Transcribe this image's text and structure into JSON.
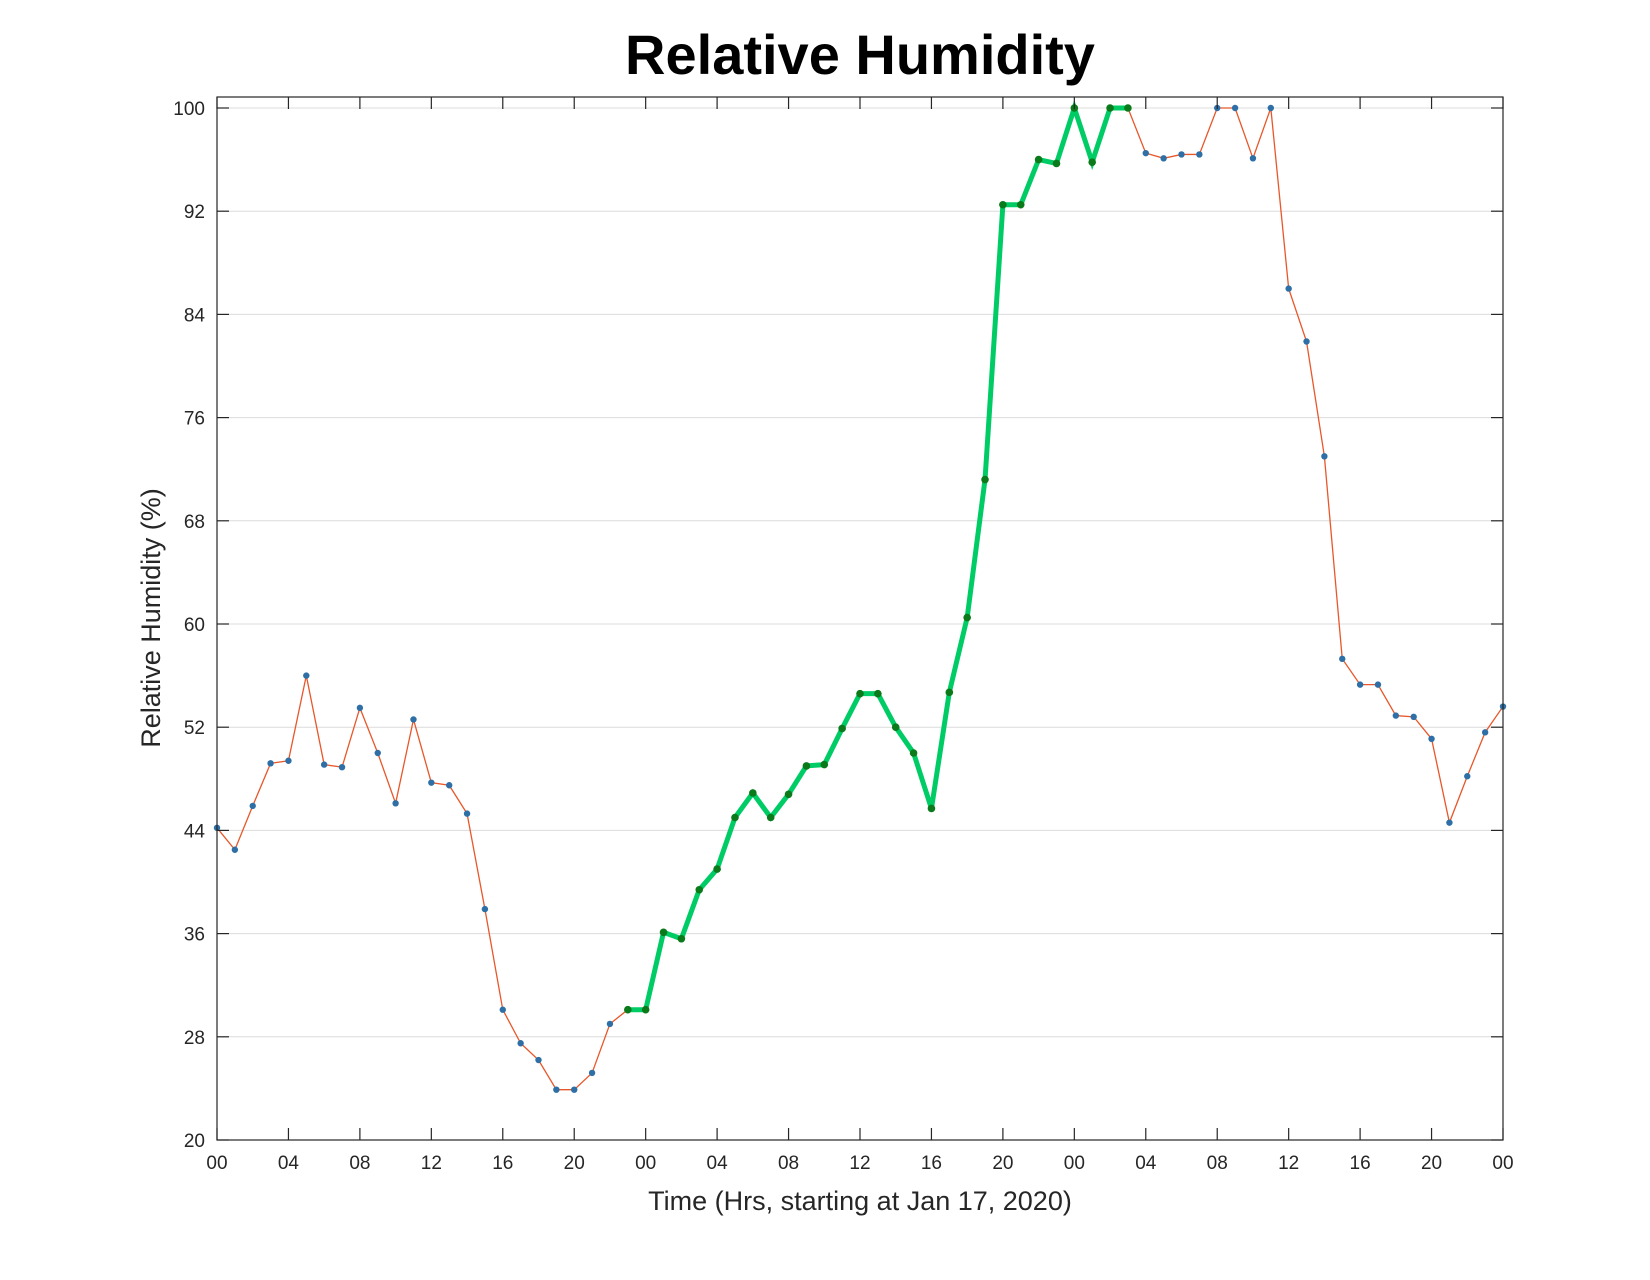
{
  "chart_data": {
    "type": "line",
    "title": "Relative Humidity",
    "xlabel": "Time (Hrs, starting at Jan 17, 2020)",
    "ylabel": "Relative Humidity (%)",
    "xlim": [
      0,
      72
    ],
    "ylim": [
      20,
      100
    ],
    "x_tick_values": [
      0,
      4,
      8,
      12,
      16,
      20,
      24,
      28,
      32,
      36,
      40,
      44,
      48,
      52,
      56,
      60,
      64,
      68,
      72
    ],
    "x_tick_labels": [
      "00",
      "04",
      "08",
      "12",
      "16",
      "20",
      "00",
      "04",
      "08",
      "12",
      "16",
      "20",
      "00",
      "04",
      "08",
      "12",
      "16",
      "20",
      "00"
    ],
    "y_ticks": [
      20,
      28,
      36,
      44,
      52,
      60,
      68,
      76,
      84,
      92,
      100
    ],
    "grid": "horizontal",
    "series": [
      {
        "color": "#e8572a",
        "marker_color": "#2e6fa6",
        "x": [
          0,
          1,
          2,
          3,
          4,
          5,
          6,
          7,
          8,
          9,
          10,
          11,
          12,
          13,
          14,
          15,
          16,
          17,
          18,
          19,
          20,
          21,
          22,
          23,
          24,
          25,
          26,
          27,
          28,
          29,
          30,
          31,
          32,
          33,
          34,
          35,
          36,
          37,
          38,
          39,
          40,
          41,
          42,
          43,
          44,
          45,
          46,
          47,
          48,
          49,
          50,
          51,
          52,
          53,
          54,
          55,
          56,
          57,
          58,
          59,
          60,
          61,
          62,
          63,
          64,
          65,
          66,
          67,
          68,
          69,
          70,
          71,
          72
        ],
        "y": [
          44.2,
          42.5,
          45.9,
          49.2,
          49.4,
          56.0,
          49.1,
          48.9,
          53.5,
          50.0,
          46.1,
          52.6,
          47.7,
          47.5,
          45.3,
          37.9,
          30.1,
          27.5,
          26.2,
          23.9,
          23.9,
          25.2,
          29.0,
          30.1,
          30.1,
          36.1,
          35.6,
          39.4,
          41.0,
          45.0,
          46.9,
          45.0,
          46.8,
          49.0,
          49.1,
          51.9,
          54.6,
          54.6,
          52.0,
          50.0,
          45.7,
          54.7,
          60.5,
          71.2,
          92.5,
          92.5,
          96.0,
          95.7,
          100,
          95.8,
          100,
          100,
          96.5,
          96.1,
          96.4,
          96.4,
          100,
          100,
          96.1,
          100,
          86.0,
          81.9,
          73.0,
          57.3,
          55.3,
          55.3,
          52.9,
          52.8,
          51.1,
          44.6,
          48.2,
          51.6,
          53.6
        ]
      },
      {
        "color": "#00cc66",
        "marker_color": "#0a7a1a",
        "x": [
          23,
          24,
          25,
          26,
          27,
          28,
          29,
          30,
          31,
          32,
          33,
          34,
          35,
          36,
          37,
          38,
          39,
          40,
          41,
          42,
          43,
          44,
          45,
          46,
          47,
          48,
          49,
          50,
          51
        ],
        "y": [
          30.1,
          30.1,
          36.1,
          35.6,
          39.4,
          41.0,
          45.0,
          46.9,
          45.0,
          46.8,
          49.0,
          49.1,
          51.9,
          54.6,
          54.6,
          52.0,
          50.0,
          45.7,
          54.7,
          60.5,
          71.2,
          92.5,
          92.5,
          96.0,
          95.7,
          100,
          95.8,
          100,
          100
        ]
      }
    ]
  }
}
